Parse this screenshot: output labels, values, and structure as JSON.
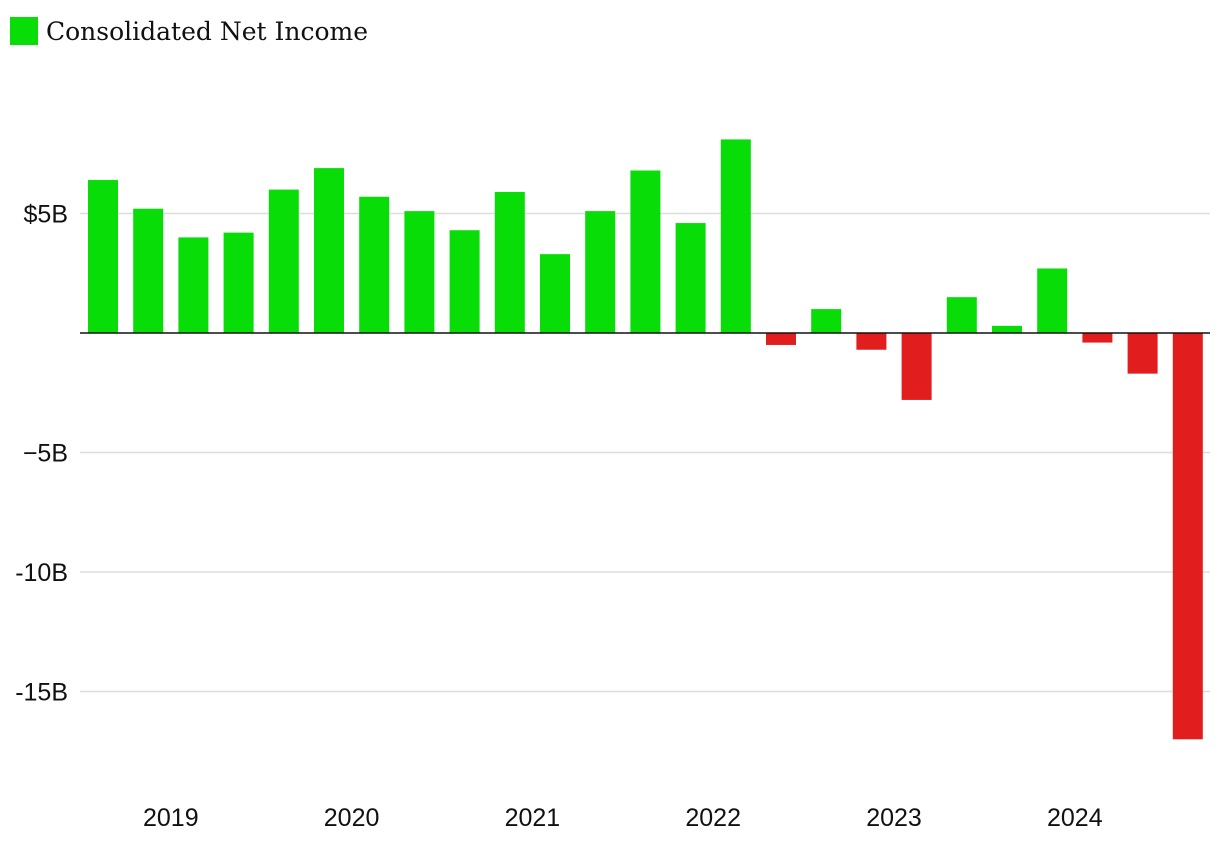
{
  "chart_data": {
    "type": "bar",
    "title": "",
    "xlabel": "",
    "ylabel": "",
    "legend": {
      "position": "top-left",
      "entries": [
        {
          "label": "Consolidated Net Income",
          "color": "#08DD08"
        }
      ]
    },
    "series": [
      {
        "name": "Consolidated Net Income",
        "values": [
          6.4,
          5.2,
          4.0,
          4.2,
          6.0,
          6.9,
          5.7,
          5.1,
          4.3,
          5.9,
          3.3,
          5.1,
          6.8,
          4.6,
          8.1,
          -0.5,
          1.0,
          -0.7,
          -2.8,
          1.5,
          0.3,
          2.7,
          -0.4,
          -1.7,
          -17.0
        ]
      }
    ],
    "x_axis": {
      "ticks": [
        "2019",
        "2020",
        "2021",
        "2022",
        "2023",
        "2024"
      ],
      "tick_bar_index": [
        1.5,
        5.5,
        9.5,
        13.5,
        17.5,
        21.5
      ]
    },
    "y_axis": {
      "ticks": [
        5,
        0,
        -5,
        -10,
        -15
      ],
      "tick_labels": [
        "$5B",
        "",
        "−5B",
        "-10B",
        "-15B"
      ]
    },
    "ylim": [
      -18.7,
      11
    ],
    "grid": true,
    "colors": {
      "positive": "#08DD08",
      "negative": "#E11D1D",
      "gridline": "#DDDDDD",
      "zero_line": "#111111",
      "text": "#111111"
    }
  }
}
